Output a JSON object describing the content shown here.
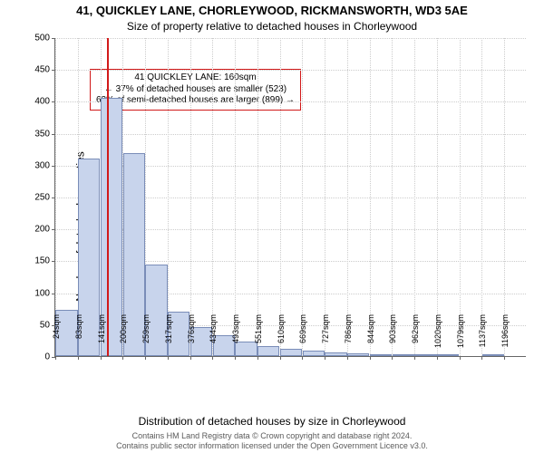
{
  "title": "41, QUICKLEY LANE, CHORLEYWOOD, RICKMANSWORTH, WD3 5AE",
  "subtitle": "Size of property relative to detached houses in Chorleywood",
  "ylabel": "Number of detached properties",
  "xlabel": "Distribution of detached houses by size in Chorleywood",
  "footer_line1": "Contains HM Land Registry data © Crown copyright and database right 2024.",
  "footer_line2": "Contains public sector information licensed under the Open Government Licence v3.0.",
  "annotation": {
    "line1": "41 QUICKLEY LANE: 160sqm",
    "line2": "← 37% of detached houses are smaller (523)",
    "line3": "63% of semi-detached houses are larger (899) →",
    "box_border": "#d11919",
    "box_bg": "#ffffff",
    "fontsize": 10
  },
  "chart": {
    "type": "histogram",
    "bar_fill": "#c8d4ec",
    "bar_border": "#7a8db8",
    "background_color": "#ffffff",
    "grid_color": "#cccccc",
    "axis_color": "#666666",
    "refline_color": "#d11919",
    "refline_x_sqm": 160,
    "ylim": [
      0,
      500
    ],
    "yticks": [
      0,
      50,
      100,
      150,
      200,
      250,
      300,
      350,
      400,
      450,
      500
    ],
    "x_categories_sqm": [
      24,
      83,
      141,
      200,
      259,
      317,
      376,
      434,
      493,
      551,
      610,
      669,
      727,
      786,
      844,
      903,
      962,
      1020,
      1079,
      1137,
      1196
    ],
    "x_tick_labels": [
      "24sqm",
      "83sqm",
      "141sqm",
      "200sqm",
      "259sqm",
      "317sqm",
      "376sqm",
      "434sqm",
      "493sqm",
      "551sqm",
      "610sqm",
      "669sqm",
      "727sqm",
      "786sqm",
      "844sqm",
      "903sqm",
      "962sqm",
      "1020sqm",
      "1079sqm",
      "1137sqm",
      "1196sqm"
    ],
    "bar_values": [
      72,
      310,
      405,
      318,
      143,
      70,
      45,
      33,
      23,
      15,
      11,
      9,
      6,
      4,
      3,
      2,
      1,
      1,
      0,
      1,
      0
    ],
    "tick_fontsize": 10,
    "label_fontsize": 12,
    "title_fontsize": 13
  }
}
